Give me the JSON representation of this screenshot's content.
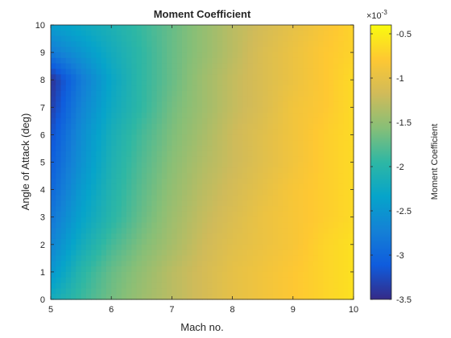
{
  "chart_data": {
    "type": "heatmap",
    "title": "Moment Coefficient",
    "xlabel": "Mach no.",
    "ylabel": "Angle of Attack (deg)",
    "xlim": [
      5,
      10
    ],
    "ylim": [
      0,
      10
    ],
    "xticks": [
      "5",
      "6",
      "7",
      "8",
      "9",
      "10"
    ],
    "yticks": [
      "0",
      "1",
      "2",
      "3",
      "4",
      "5",
      "6",
      "7",
      "8",
      "9",
      "10"
    ],
    "grid": false,
    "colormap": "parula",
    "colorbar": {
      "label": "Moment Coefficient",
      "exponent_label": "×10",
      "exponent_power": "-3",
      "range": [
        -3.5,
        -0.4
      ],
      "ticks": [
        "-0.5",
        "-1",
        "-1.5",
        "-2",
        "-2.5",
        "-3",
        "-3.5"
      ],
      "tick_values": [
        -0.5,
        -1,
        -1.5,
        -2,
        -2.5,
        -3,
        -3.5
      ]
    },
    "x": [
      5,
      5.5,
      6,
      6.5,
      7,
      7.5,
      8,
      8.5,
      9,
      9.5,
      10
    ],
    "y": [
      0,
      1,
      2,
      3,
      4,
      5,
      6,
      7,
      8,
      9,
      10
    ],
    "z": [
      [
        -2.2,
        -1.9,
        -1.65,
        -1.45,
        -1.3,
        -1.15,
        -1.0,
        -0.9,
        -0.8,
        -0.7,
        -0.6
      ],
      [
        -2.5,
        -2.0,
        -1.7,
        -1.5,
        -1.3,
        -1.15,
        -1.0,
        -0.9,
        -0.8,
        -0.7,
        -0.6
      ],
      [
        -2.7,
        -2.2,
        -1.85,
        -1.6,
        -1.4,
        -1.2,
        -1.05,
        -0.95,
        -0.85,
        -0.7,
        -0.6
      ],
      [
        -2.85,
        -2.35,
        -2.0,
        -1.7,
        -1.45,
        -1.25,
        -1.1,
        -0.95,
        -0.85,
        -0.75,
        -0.65
      ],
      [
        -3.0,
        -2.45,
        -2.05,
        -1.75,
        -1.5,
        -1.3,
        -1.15,
        -1.0,
        -0.85,
        -0.75,
        -0.65
      ],
      [
        -3.1,
        -2.55,
        -2.1,
        -1.8,
        -1.55,
        -1.35,
        -1.2,
        -1.05,
        -0.9,
        -0.75,
        -0.65
      ],
      [
        -3.2,
        -2.6,
        -2.15,
        -1.85,
        -1.6,
        -1.4,
        -1.2,
        -1.05,
        -0.9,
        -0.75,
        -0.65
      ],
      [
        -3.35,
        -2.7,
        -2.25,
        -1.95,
        -1.65,
        -1.45,
        -1.25,
        -1.1,
        -0.9,
        -0.8,
        -0.65
      ],
      [
        -3.45,
        -2.8,
        -2.3,
        -1.95,
        -1.7,
        -1.45,
        -1.25,
        -1.1,
        -0.95,
        -0.8,
        -0.65
      ],
      [
        -2.8,
        -2.5,
        -2.2,
        -1.95,
        -1.7,
        -1.5,
        -1.3,
        -1.1,
        -0.95,
        -0.8,
        -0.7
      ],
      [
        -2.4,
        -2.25,
        -2.1,
        -1.9,
        -1.7,
        -1.5,
        -1.3,
        -1.15,
        -1.0,
        -0.85,
        -0.7
      ]
    ]
  },
  "colors": {
    "axis": "#262626",
    "parula": [
      "#352a87",
      "#0f5cdd",
      "#1481d6",
      "#06a4ca",
      "#2eb7a4",
      "#87bf77",
      "#d1bb59",
      "#fec832",
      "#f9fb0e"
    ]
  }
}
